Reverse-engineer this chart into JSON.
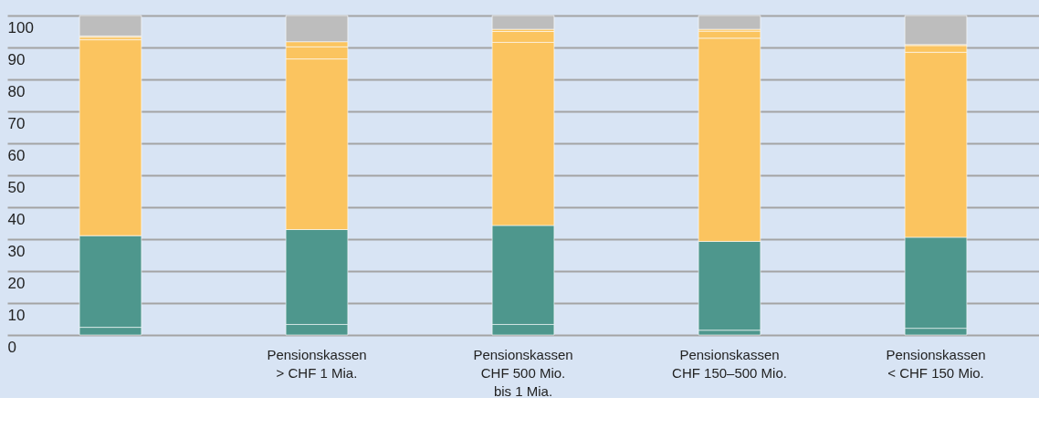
{
  "chart_data": {
    "type": "bar",
    "stacked": true,
    "categories": [
      null,
      "Pensionskassen\n> CHF 1 Mia.",
      "Pensionskassen\nCHF 500 Mio.\nbis 1 Mia.",
      "Pensionskassen\nCHF 150–500 Mio.",
      "Pensionskassen\n< CHF 150 Mio."
    ],
    "series": [
      {
        "color": "#4e978d",
        "values": [
          2.4,
          3.3,
          3.3,
          1.5,
          2.1
        ]
      },
      {
        "color": "#4e978d",
        "values": [
          28.7,
          29.7,
          31.0,
          27.8,
          28.5
        ]
      },
      {
        "color": "#fbc45f",
        "values": [
          61.3,
          53.4,
          57.3,
          63.6,
          57.9
        ]
      },
      {
        "color": "#fbc45f",
        "values": [
          0.8,
          3.8,
          3.4,
          2.2,
          2.1
        ]
      },
      {
        "color": "#fbc45f",
        "values": [
          0.4,
          1.6,
          0.7,
          0.6,
          0.3
        ]
      },
      {
        "color": "#bdbdbd",
        "values": [
          6.4,
          8.2,
          4.3,
          4.3,
          9.1
        ]
      }
    ],
    "ylim": [
      0,
      100
    ],
    "yticks": [
      0,
      10,
      20,
      30,
      40,
      50,
      60,
      70,
      80,
      90,
      100
    ],
    "grid": "y"
  }
}
